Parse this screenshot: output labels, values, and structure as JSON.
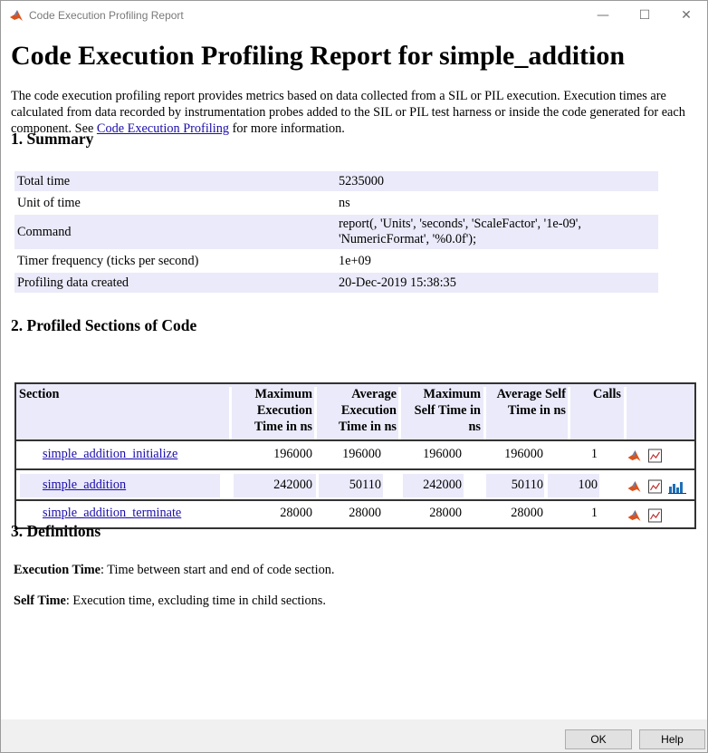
{
  "window": {
    "title": "Code Execution Profiling Report"
  },
  "controls": {
    "minimize": "—",
    "maximize": "☐",
    "close": "✕"
  },
  "report": {
    "heading": "Code Execution Profiling Report for simple_addition",
    "intro_pre": "The code execution profiling report provides metrics based on data collected from a SIL or PIL execution. Execution times are calculated from data recorded by instrumentation probes added to the SIL or PIL test harness or inside the code generated for each component. See ",
    "intro_link": "Code Execution Profiling",
    "intro_post": " for more information."
  },
  "summary": {
    "heading": "1. Summary",
    "rows": [
      {
        "key": "Total time",
        "value": "5235000"
      },
      {
        "key": "Unit of time",
        "value": "ns"
      },
      {
        "key": "Command",
        "value": "report(, 'Units', 'seconds', 'ScaleFactor', '1e-09',",
        "value2": "'NumericFormat', '%0.0f');"
      },
      {
        "key": "Timer frequency (ticks per second)",
        "value": "1e+09"
      },
      {
        "key": "Profiling data created",
        "value": "20-Dec-2019 15:38:35"
      }
    ]
  },
  "profiled": {
    "heading": "2. Profiled Sections of Code",
    "columns": {
      "section": "Section",
      "max_exec": [
        "Maximum",
        "Execution",
        "Time in ns"
      ],
      "avg_exec": [
        "Average",
        "Execution",
        "Time in ns"
      ],
      "max_self": [
        "Maximum",
        "Self Time in",
        "ns"
      ],
      "avg_self": [
        "Average Self",
        "Time in ns"
      ],
      "calls": "Calls"
    },
    "rows": [
      {
        "name": "simple_addition_initialize",
        "max_exec": "196000",
        "avg_exec": "196000",
        "max_self": "196000",
        "avg_self": "196000",
        "calls": "1"
      },
      {
        "name": "simple_addition",
        "max_exec": "242000",
        "avg_exec": "50110",
        "max_self": "242000",
        "avg_self": "50110",
        "calls": "100"
      },
      {
        "name": "simple_addition_terminate",
        "max_exec": "28000",
        "avg_exec": "28000",
        "max_self": "28000",
        "avg_self": "28000",
        "calls": "1"
      }
    ]
  },
  "definitions": {
    "heading": "3. Definitions",
    "exec_term": "Execution Time",
    "exec_desc": ": Time between start and end of code section.",
    "self_term": "Self Time",
    "self_desc": ": Execution time, excluding time in child sections."
  },
  "buttons": {
    "ok": "OK",
    "help": "Help"
  },
  "colors": {
    "row_shade": "#eaeafa",
    "link": "#1a0dab",
    "accent": "#d9531e"
  }
}
